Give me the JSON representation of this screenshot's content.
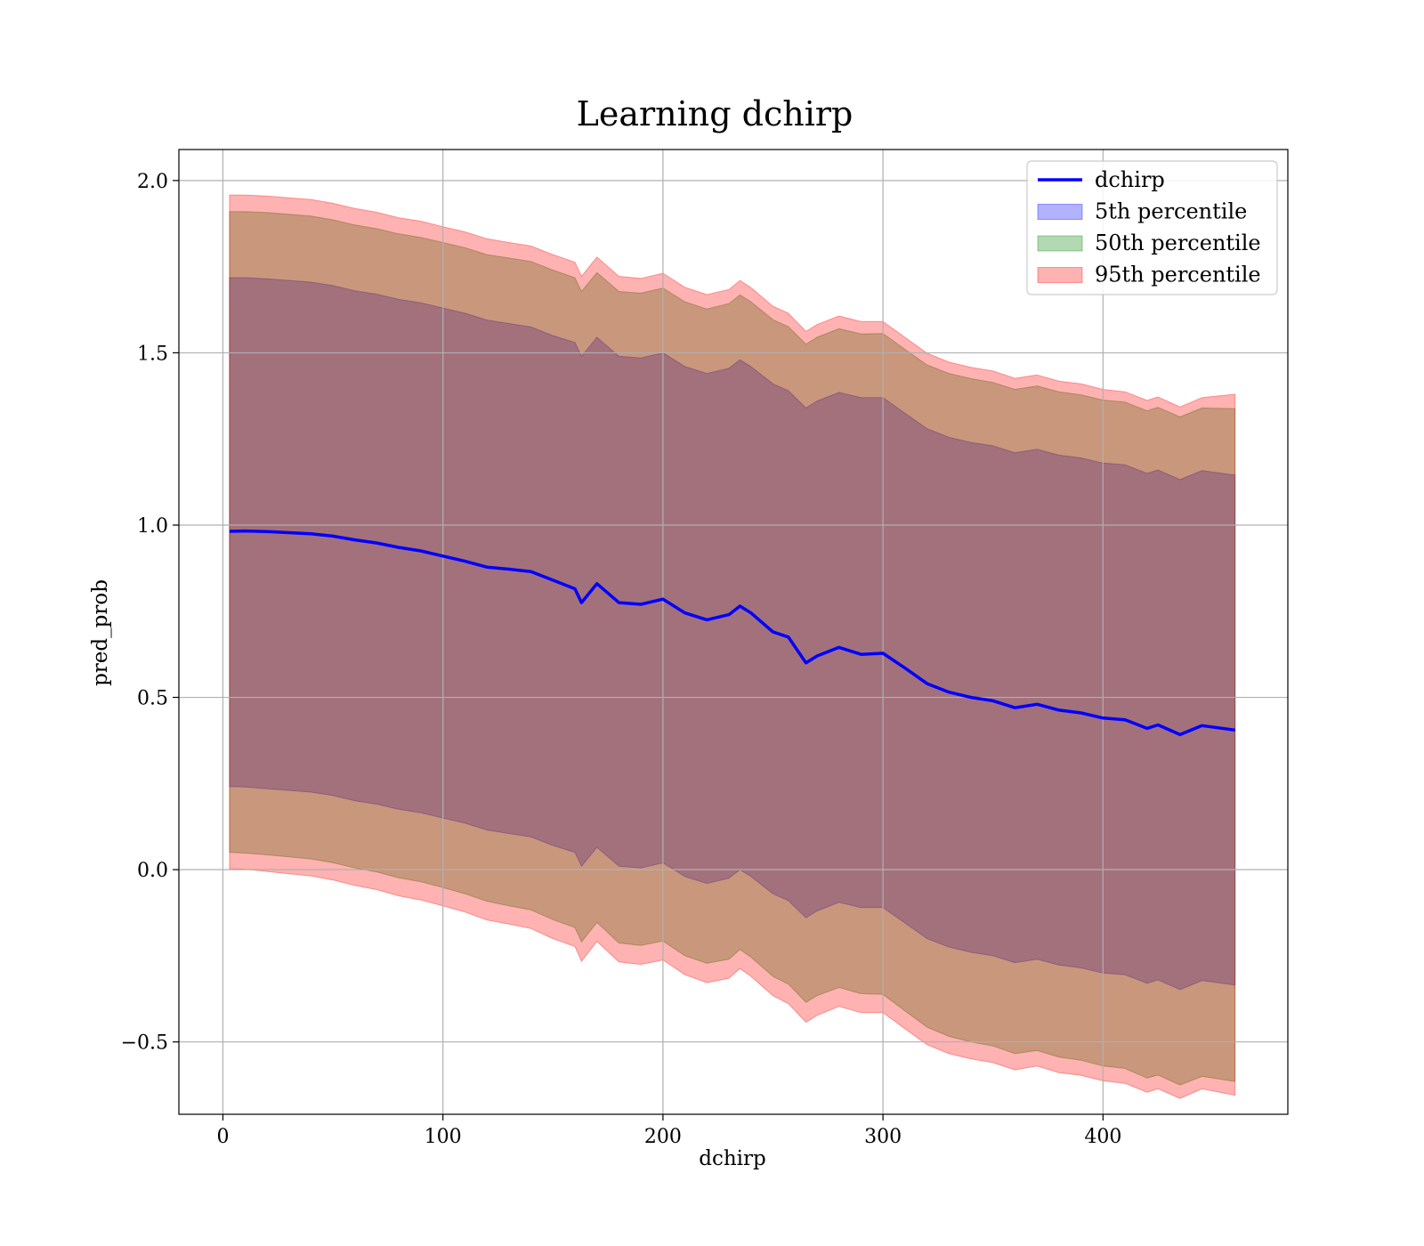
{
  "chart_data": {
    "type": "area",
    "title": "Learning dchirp",
    "xlabel": "dchirp",
    "ylabel": "pred_prob",
    "xlim": [
      -20,
      484
    ],
    "ylim": [
      -0.71,
      2.09
    ],
    "xticks": [
      0,
      100,
      200,
      300,
      400
    ],
    "xtick_labels": [
      "0",
      "100",
      "200",
      "300",
      "400"
    ],
    "yticks": [
      -0.5,
      0.0,
      0.5,
      1.0,
      1.5,
      2.0
    ],
    "ytick_labels": [
      "−0.5",
      "0.0",
      "0.5",
      "1.0",
      "1.5",
      "2.0"
    ],
    "grid": true,
    "legend_position": "top-right",
    "x": [
      3,
      10,
      20,
      30,
      40,
      50,
      60,
      70,
      80,
      90,
      100,
      110,
      120,
      130,
      140,
      150,
      160,
      163,
      170,
      180,
      190,
      200,
      210,
      220,
      230,
      235,
      240,
      250,
      257,
      265,
      270,
      280,
      290,
      300,
      310,
      320,
      330,
      340,
      350,
      360,
      370,
      380,
      390,
      400,
      410,
      420,
      425,
      435,
      445,
      460
    ],
    "series": [
      {
        "name": "dchirp",
        "kind": "line",
        "color": "#0000ff",
        "values": [
          0.982,
          0.983,
          0.981,
          0.978,
          0.975,
          0.968,
          0.957,
          0.948,
          0.935,
          0.925,
          0.91,
          0.895,
          0.878,
          0.872,
          0.865,
          0.84,
          0.815,
          0.775,
          0.83,
          0.775,
          0.77,
          0.785,
          0.745,
          0.725,
          0.74,
          0.765,
          0.745,
          0.69,
          0.675,
          0.6,
          0.62,
          0.645,
          0.625,
          0.628,
          0.585,
          0.54,
          0.515,
          0.5,
          0.49,
          0.47,
          0.48,
          0.463,
          0.455,
          0.44,
          0.435,
          0.41,
          0.42,
          0.392,
          0.418,
          0.405
        ]
      },
      {
        "name": "5th percentile",
        "kind": "band",
        "color": "#0000ff",
        "lower": [
          0.241,
          0.24,
          0.235,
          0.23,
          0.225,
          0.215,
          0.2,
          0.19,
          0.175,
          0.165,
          0.15,
          0.135,
          0.115,
          0.105,
          0.095,
          0.07,
          0.05,
          0.01,
          0.065,
          0.01,
          0.005,
          0.02,
          -0.02,
          -0.04,
          -0.025,
          0.0,
          -0.02,
          -0.07,
          -0.09,
          -0.14,
          -0.12,
          -0.095,
          -0.11,
          -0.11,
          -0.155,
          -0.2,
          -0.225,
          -0.24,
          -0.25,
          -0.27,
          -0.26,
          -0.277,
          -0.285,
          -0.3,
          -0.305,
          -0.33,
          -0.32,
          -0.348,
          -0.322,
          -0.335
        ],
        "upper": [
          1.718,
          1.718,
          1.715,
          1.71,
          1.705,
          1.695,
          1.68,
          1.67,
          1.655,
          1.645,
          1.63,
          1.615,
          1.595,
          1.585,
          1.575,
          1.55,
          1.53,
          1.49,
          1.545,
          1.49,
          1.485,
          1.5,
          1.46,
          1.44,
          1.455,
          1.48,
          1.46,
          1.41,
          1.39,
          1.34,
          1.36,
          1.385,
          1.37,
          1.37,
          1.325,
          1.28,
          1.255,
          1.24,
          1.23,
          1.21,
          1.22,
          1.203,
          1.195,
          1.18,
          1.175,
          1.15,
          1.16,
          1.132,
          1.158,
          1.145
        ]
      },
      {
        "name": "50th percentile",
        "kind": "band",
        "color": "#008000",
        "lower": [
          0.05,
          0.048,
          0.043,
          0.037,
          0.031,
          0.02,
          0.005,
          -0.007,
          -0.024,
          -0.035,
          -0.052,
          -0.07,
          -0.092,
          -0.105,
          -0.117,
          -0.145,
          -0.168,
          -0.21,
          -0.153,
          -0.213,
          -0.22,
          -0.207,
          -0.25,
          -0.272,
          -0.26,
          -0.232,
          -0.254,
          -0.31,
          -0.332,
          -0.385,
          -0.366,
          -0.342,
          -0.36,
          -0.362,
          -0.41,
          -0.457,
          -0.484,
          -0.5,
          -0.512,
          -0.534,
          -0.525,
          -0.544,
          -0.553,
          -0.57,
          -0.577,
          -0.605,
          -0.596,
          -0.625,
          -0.6,
          -0.615
        ],
        "upper": [
          1.91,
          1.91,
          1.907,
          1.902,
          1.897,
          1.886,
          1.871,
          1.86,
          1.845,
          1.835,
          1.82,
          1.805,
          1.785,
          1.775,
          1.765,
          1.74,
          1.718,
          1.678,
          1.733,
          1.678,
          1.673,
          1.688,
          1.648,
          1.627,
          1.643,
          1.668,
          1.648,
          1.596,
          1.576,
          1.525,
          1.545,
          1.57,
          1.555,
          1.556,
          1.51,
          1.465,
          1.44,
          1.425,
          1.414,
          1.394,
          1.404,
          1.387,
          1.378,
          1.363,
          1.357,
          1.332,
          1.342,
          1.314,
          1.34,
          1.338
        ]
      },
      {
        "name": "95th percentile",
        "kind": "band",
        "color": "#ff0000",
        "lower": [
          0.003,
          0.001,
          -0.005,
          -0.012,
          -0.018,
          -0.03,
          -0.046,
          -0.058,
          -0.076,
          -0.088,
          -0.105,
          -0.123,
          -0.146,
          -0.158,
          -0.171,
          -0.2,
          -0.223,
          -0.266,
          -0.208,
          -0.268,
          -0.275,
          -0.262,
          -0.305,
          -0.328,
          -0.315,
          -0.287,
          -0.31,
          -0.366,
          -0.389,
          -0.443,
          -0.423,
          -0.397,
          -0.415,
          -0.415,
          -0.462,
          -0.508,
          -0.534,
          -0.549,
          -0.56,
          -0.581,
          -0.57,
          -0.589,
          -0.597,
          -0.613,
          -0.62,
          -0.646,
          -0.636,
          -0.664,
          -0.636,
          -0.655
        ],
        "upper": [
          1.958,
          1.958,
          1.955,
          1.95,
          1.945,
          1.934,
          1.919,
          1.908,
          1.892,
          1.882,
          1.866,
          1.851,
          1.831,
          1.82,
          1.81,
          1.785,
          1.763,
          1.722,
          1.778,
          1.722,
          1.716,
          1.731,
          1.69,
          1.669,
          1.684,
          1.71,
          1.689,
          1.635,
          1.615,
          1.562,
          1.582,
          1.607,
          1.591,
          1.591,
          1.545,
          1.499,
          1.473,
          1.458,
          1.447,
          1.426,
          1.436,
          1.418,
          1.41,
          1.394,
          1.387,
          1.362,
          1.372,
          1.343,
          1.37,
          1.38
        ]
      }
    ]
  }
}
